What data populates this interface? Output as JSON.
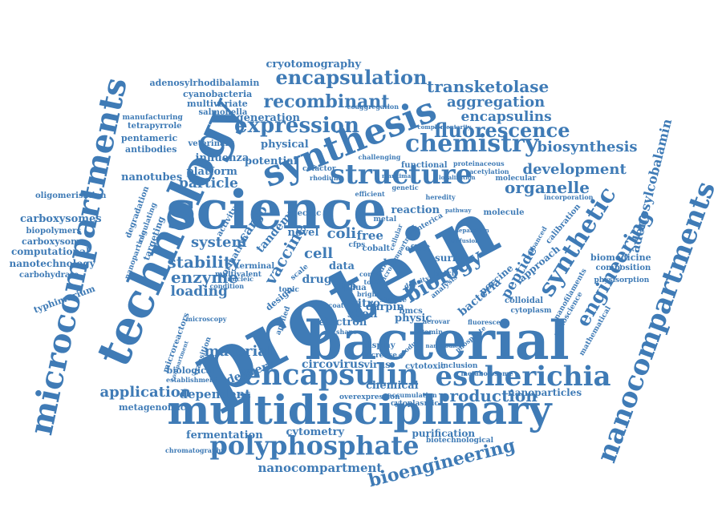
{
  "cloud": {
    "word_color": "#3f7bb6",
    "background": "#ffffff",
    "words": [
      {
        "text": "protein"
      },
      {
        "text": "bacterial"
      },
      {
        "text": "science"
      },
      {
        "text": "technology"
      },
      {
        "text": "microcompartments"
      },
      {
        "text": "multidisciplinary"
      },
      {
        "text": "synthesis"
      },
      {
        "text": "nanocompartments"
      },
      {
        "text": "encapsulin"
      },
      {
        "text": "escherichia"
      },
      {
        "text": "structure"
      },
      {
        "text": "polyphosphate"
      },
      {
        "text": "chemistry"
      },
      {
        "text": "synthetic"
      },
      {
        "text": "expression"
      },
      {
        "text": "engineering"
      },
      {
        "text": "encapsulation"
      },
      {
        "text": "fluorescence"
      },
      {
        "text": "recombinant"
      },
      {
        "text": "biology"
      },
      {
        "text": "bioengineering"
      },
      {
        "text": "transketolase"
      },
      {
        "text": "adenosylcobalamin"
      },
      {
        "text": "development"
      },
      {
        "text": "organelle"
      },
      {
        "text": "aggregation"
      },
      {
        "text": "encapsulins"
      },
      {
        "text": "biosynthesis"
      },
      {
        "text": "production"
      },
      {
        "text": "application"
      },
      {
        "text": "nanocompartment"
      },
      {
        "text": "cryotomography"
      },
      {
        "text": "adenosylrhodibalamin"
      },
      {
        "text": "enzyme"
      },
      {
        "text": "stability"
      },
      {
        "text": "system"
      },
      {
        "text": "particle"
      },
      {
        "text": "platform"
      },
      {
        "text": "potential"
      },
      {
        "text": "generation"
      },
      {
        "text": "physical"
      },
      {
        "text": "cyanobacteria"
      },
      {
        "text": "multivariate"
      },
      {
        "text": "salmonella"
      },
      {
        "text": "influenza"
      },
      {
        "text": "veterinary"
      },
      {
        "text": "antibodies"
      },
      {
        "text": "nanotubes"
      },
      {
        "text": "manufacturing"
      },
      {
        "text": "tetrapyrrole"
      },
      {
        "text": "pentameric"
      },
      {
        "text": "oligomerisation"
      },
      {
        "text": "carboxysomes"
      },
      {
        "text": "biopolymers"
      },
      {
        "text": "carboxysome"
      },
      {
        "text": "computational"
      },
      {
        "text": "nanotechnology"
      },
      {
        "text": "carbohydrate"
      },
      {
        "text": "typhimurium"
      },
      {
        "text": "degradation"
      },
      {
        "text": "regulating"
      },
      {
        "text": "targeting"
      },
      {
        "text": "nanoparticle"
      },
      {
        "text": "loading"
      },
      {
        "text": "material"
      },
      {
        "text": "dependent"
      },
      {
        "text": "delivery"
      },
      {
        "text": "biological"
      },
      {
        "text": "metagenomics"
      },
      {
        "text": "microreactors"
      },
      {
        "text": "fermentation"
      },
      {
        "text": "cytometry"
      },
      {
        "text": "purification"
      },
      {
        "text": "nanoparticles"
      },
      {
        "text": "biotechnological"
      },
      {
        "text": "circovirus"
      },
      {
        "text": "virus"
      },
      {
        "text": "cytotoxic"
      },
      {
        "text": "inclusion"
      },
      {
        "text": "metabolosome"
      },
      {
        "text": "chemical"
      },
      {
        "text": "overexpression"
      },
      {
        "text": "accumulation"
      },
      {
        "text": "cytoplasmic"
      },
      {
        "text": "display"
      },
      {
        "text": "increase"
      },
      {
        "text": "electron"
      },
      {
        "text": "physic"
      },
      {
        "text": "fluorescent"
      },
      {
        "text": "cytoplasm"
      },
      {
        "text": "colloidal"
      },
      {
        "text": "peptide"
      },
      {
        "text": "bacteria"
      },
      {
        "text": "porcine"
      },
      {
        "text": "approach"
      },
      {
        "text": "vitro"
      },
      {
        "text": "shell"
      },
      {
        "text": "darpin"
      },
      {
        "text": "surface"
      },
      {
        "text": "batch"
      },
      {
        "text": "effect"
      },
      {
        "text": "vaccine"
      },
      {
        "text": "cargo"
      },
      {
        "text": "coli"
      },
      {
        "text": "cell"
      },
      {
        "text": "free"
      },
      {
        "text": "data"
      },
      {
        "text": "drug"
      },
      {
        "text": "step"
      },
      {
        "text": "simple"
      },
      {
        "text": "design"
      },
      {
        "text": "tandem"
      },
      {
        "text": "novel"
      },
      {
        "text": "reaction"
      },
      {
        "text": "molecule"
      },
      {
        "text": "calibration"
      },
      {
        "text": "nanofilaments"
      },
      {
        "text": "nanoscience"
      },
      {
        "text": "mathematical"
      },
      {
        "text": "biomedicine"
      },
      {
        "text": "composition"
      },
      {
        "text": "physisorption"
      },
      {
        "text": "embanced"
      },
      {
        "text": "incorporation"
      },
      {
        "text": "molecular"
      },
      {
        "text": "acetylation"
      },
      {
        "text": "heredity"
      },
      {
        "text": "pathway"
      },
      {
        "text": "specific"
      },
      {
        "text": "cofactor"
      },
      {
        "text": "rhodium"
      },
      {
        "text": "challenging"
      },
      {
        "text": "functional"
      },
      {
        "text": "proteinaceous"
      },
      {
        "text": "coaggregation"
      },
      {
        "text": "activity"
      },
      {
        "text": "formation"
      },
      {
        "text": "terminal"
      },
      {
        "text": "multivalent"
      },
      {
        "text": "condition"
      },
      {
        "text": "nucleic"
      },
      {
        "text": "pdua"
      },
      {
        "text": "enterica"
      },
      {
        "text": "microcompartment"
      },
      {
        "text": "metal"
      },
      {
        "text": "cobalt"
      },
      {
        "text": "chromatography"
      },
      {
        "text": "establishment"
      },
      {
        "text": "microscopy"
      },
      {
        "text": "analysis"
      },
      {
        "text": "transition"
      },
      {
        "text": "applied"
      },
      {
        "text": "topic"
      },
      {
        "text": "scale"
      },
      {
        "text": "phosphate"
      },
      {
        "text": "density"
      },
      {
        "text": "vitamin"
      },
      {
        "text": "nanobodies"
      },
      {
        "text": "product"
      },
      {
        "text": "compartment"
      },
      {
        "text": "shape"
      },
      {
        "text": "genetic"
      },
      {
        "text": "maritima"
      },
      {
        "text": "localization"
      },
      {
        "text": "complementarity"
      },
      {
        "text": "core"
      },
      {
        "text": "total"
      },
      {
        "text": "bmcs"
      },
      {
        "text": "aerovar"
      },
      {
        "text": "bright"
      },
      {
        "text": "coat"
      },
      {
        "text": "cfps"
      },
      {
        "text": "count"
      },
      {
        "text": "diffusion"
      },
      {
        "text": "separation"
      },
      {
        "text": "cellular"
      },
      {
        "text": "efficient"
      }
    ]
  }
}
